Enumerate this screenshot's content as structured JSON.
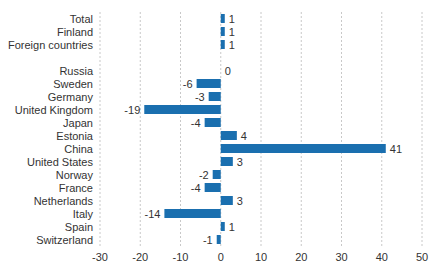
{
  "chart_data": {
    "type": "bar",
    "orientation": "horizontal",
    "categories": [
      "Total",
      "Finland",
      "Foreign countries",
      null,
      "Russia",
      "Sweden",
      "Germany",
      "United Kingdom",
      "Japan",
      "Estonia",
      "China",
      "United States",
      "Norway",
      "France",
      "Netherlands",
      "Italy",
      "Spain",
      "Switzerland"
    ],
    "values": [
      1,
      1,
      1,
      null,
      0,
      -6,
      -3,
      -19,
      -4,
      4,
      41,
      3,
      -2,
      -4,
      3,
      -14,
      1,
      -1
    ],
    "color": "#1a6faf",
    "xlim": [
      -30,
      50
    ],
    "xticks": [
      -30,
      -20,
      -10,
      0,
      10,
      20,
      30,
      40,
      50
    ],
    "grid": true,
    "data_labels": true
  }
}
